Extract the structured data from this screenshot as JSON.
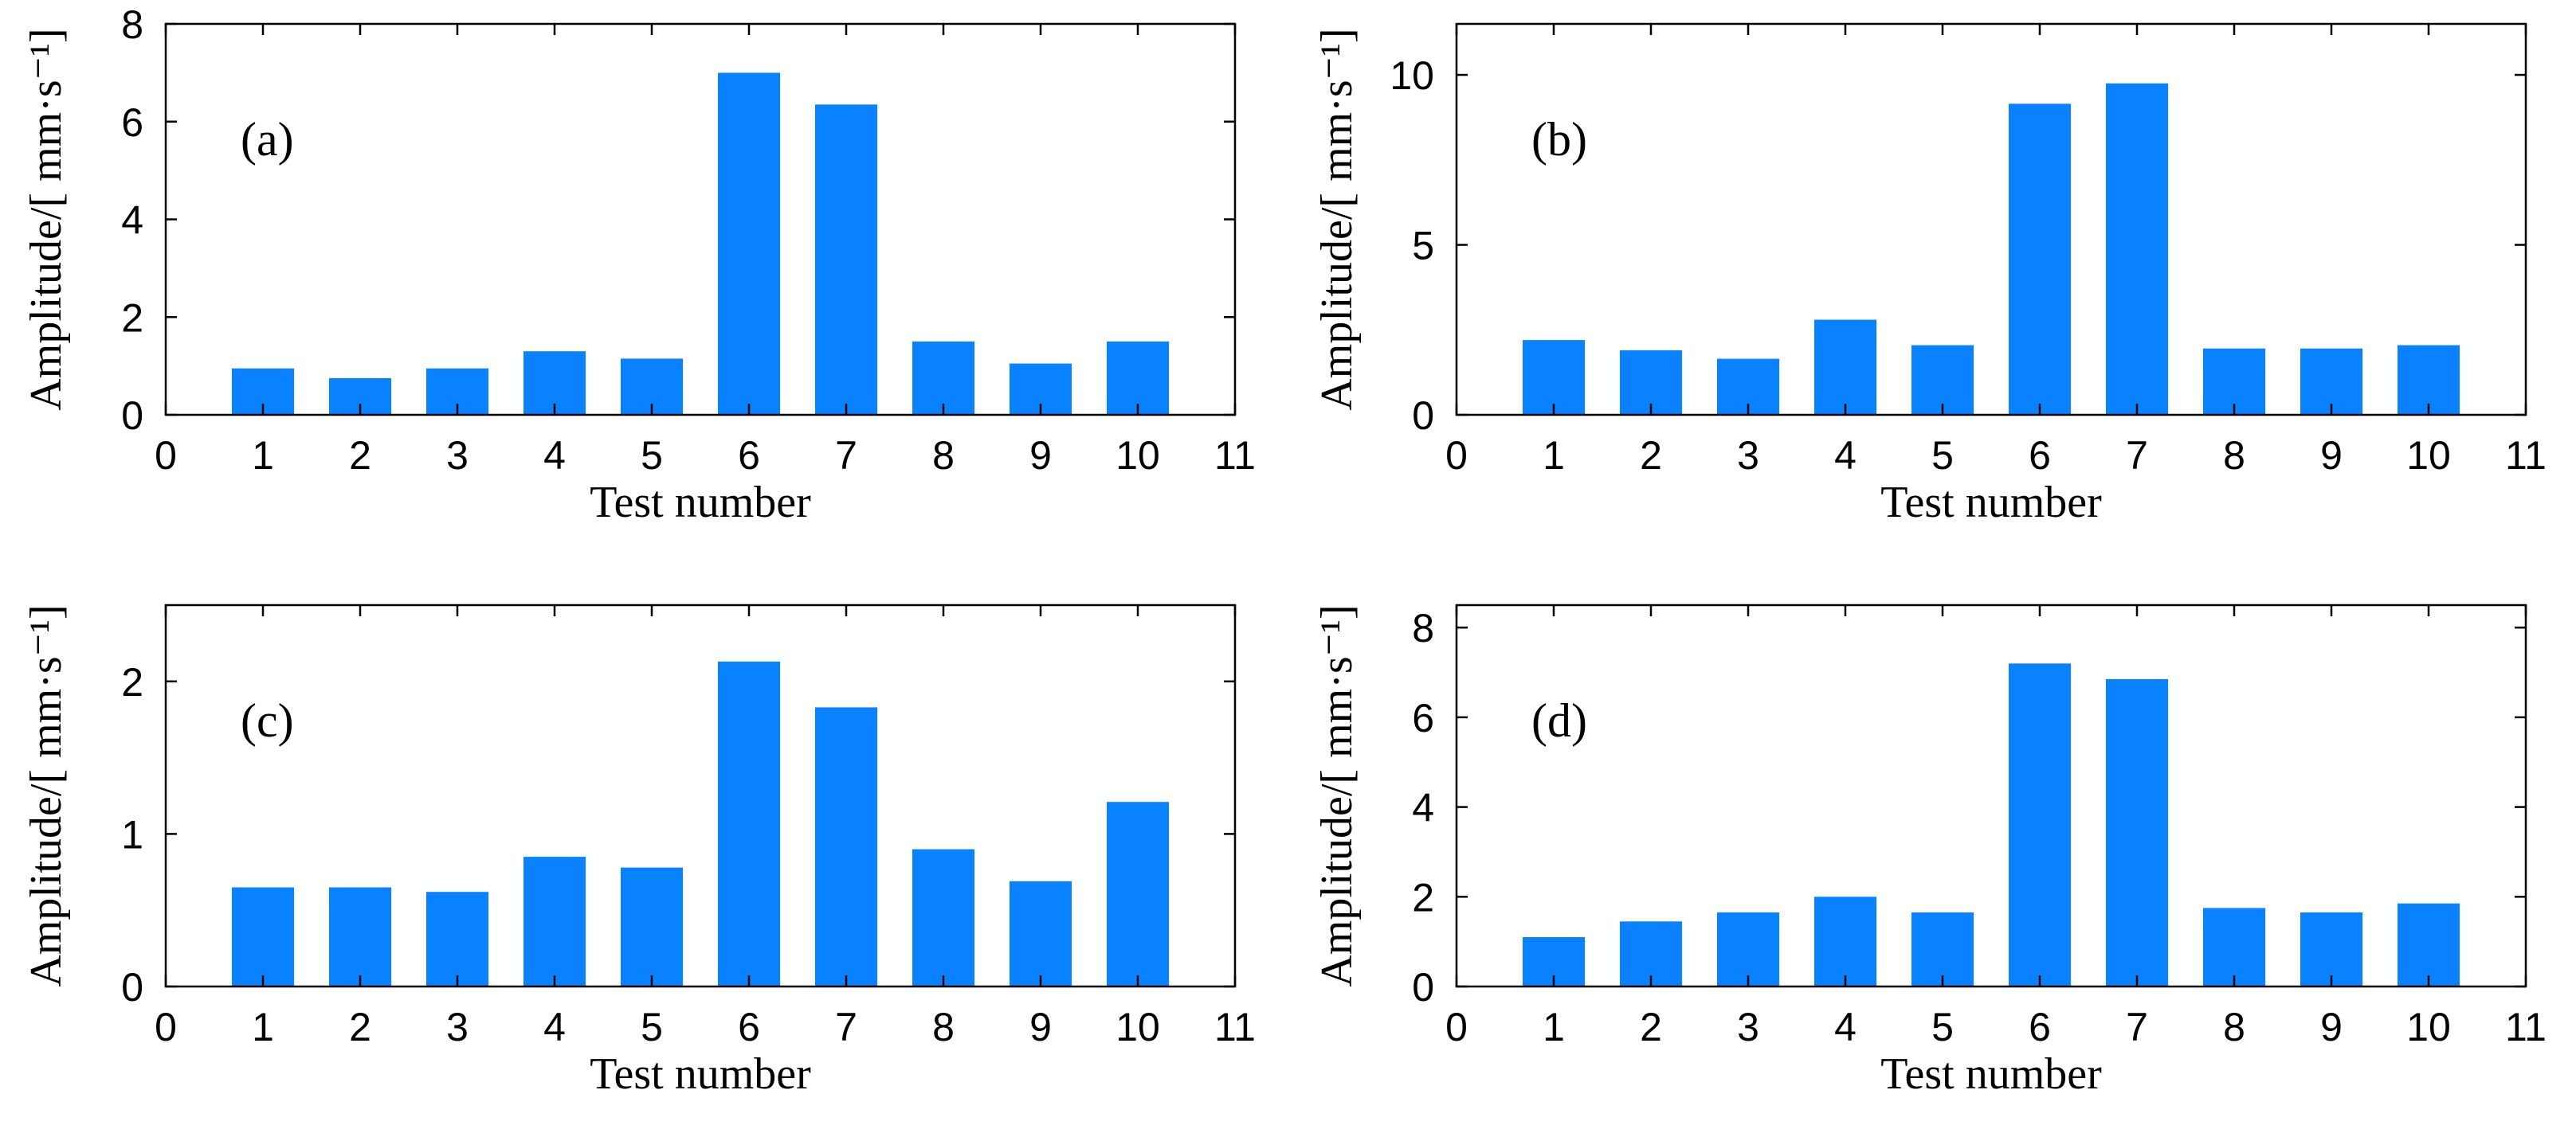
{
  "figure": {
    "bar_color": "#0a82ff",
    "axis_color": "#000000"
  },
  "chart_data": [
    {
      "type": "bar",
      "panel_label": "(a)",
      "categories": [
        1,
        2,
        3,
        4,
        5,
        6,
        7,
        8,
        9,
        10
      ],
      "values": [
        0.95,
        0.75,
        0.95,
        1.3,
        1.15,
        7.0,
        6.35,
        1.5,
        1.05,
        1.5
      ],
      "xlabel": "Test number",
      "ylabel": "Amplitude/[ mm·s⁻¹]",
      "xlim": [
        0,
        11
      ],
      "ylim": [
        0,
        8
      ],
      "xticks": [
        "0",
        "1",
        "2",
        "3",
        "4",
        "5",
        "6",
        "7",
        "8",
        "9",
        "10",
        "11"
      ],
      "yticks": [
        "0",
        "2",
        "4",
        "6",
        "8"
      ]
    },
    {
      "type": "bar",
      "panel_label": "(b)",
      "categories": [
        1,
        2,
        3,
        4,
        5,
        6,
        7,
        8,
        9,
        10
      ],
      "values": [
        2.2,
        1.9,
        1.65,
        2.8,
        2.05,
        9.15,
        9.75,
        1.95,
        1.95,
        2.05
      ],
      "xlabel": "Test number",
      "ylabel": "Amplitude/[ mm·s⁻¹]",
      "xlim": [
        0,
        11
      ],
      "ylim": [
        0,
        11.5
      ],
      "xticks": [
        "0",
        "1",
        "2",
        "3",
        "4",
        "5",
        "6",
        "7",
        "8",
        "9",
        "10",
        "11"
      ],
      "yticks": [
        "0",
        "5",
        "10"
      ]
    },
    {
      "type": "bar",
      "panel_label": "(c)",
      "categories": [
        1,
        2,
        3,
        4,
        5,
        6,
        7,
        8,
        9,
        10
      ],
      "values": [
        0.65,
        0.65,
        0.62,
        0.85,
        0.78,
        2.13,
        1.83,
        0.9,
        0.69,
        1.21
      ],
      "xlabel": "Test number",
      "ylabel": "Amplitude/[ mm·s⁻¹]",
      "xlim": [
        0,
        11
      ],
      "ylim": [
        0,
        2.5
      ],
      "xticks": [
        "0",
        "1",
        "2",
        "3",
        "4",
        "5",
        "6",
        "7",
        "8",
        "9",
        "10",
        "11"
      ],
      "yticks": [
        "0",
        "1",
        "2"
      ]
    },
    {
      "type": "bar",
      "panel_label": "(d)",
      "categories": [
        1,
        2,
        3,
        4,
        5,
        6,
        7,
        8,
        9,
        10
      ],
      "values": [
        1.1,
        1.45,
        1.65,
        2.0,
        1.65,
        7.2,
        6.85,
        1.75,
        1.65,
        1.85
      ],
      "xlabel": "Test number",
      "ylabel": "Amplitude/[ mm·s⁻¹]",
      "xlim": [
        0,
        11
      ],
      "ylim": [
        0,
        8.5
      ],
      "xticks": [
        "0",
        "1",
        "2",
        "3",
        "4",
        "5",
        "6",
        "7",
        "8",
        "9",
        "10",
        "11"
      ],
      "yticks": [
        "0",
        "2",
        "4",
        "6",
        "8"
      ]
    }
  ]
}
